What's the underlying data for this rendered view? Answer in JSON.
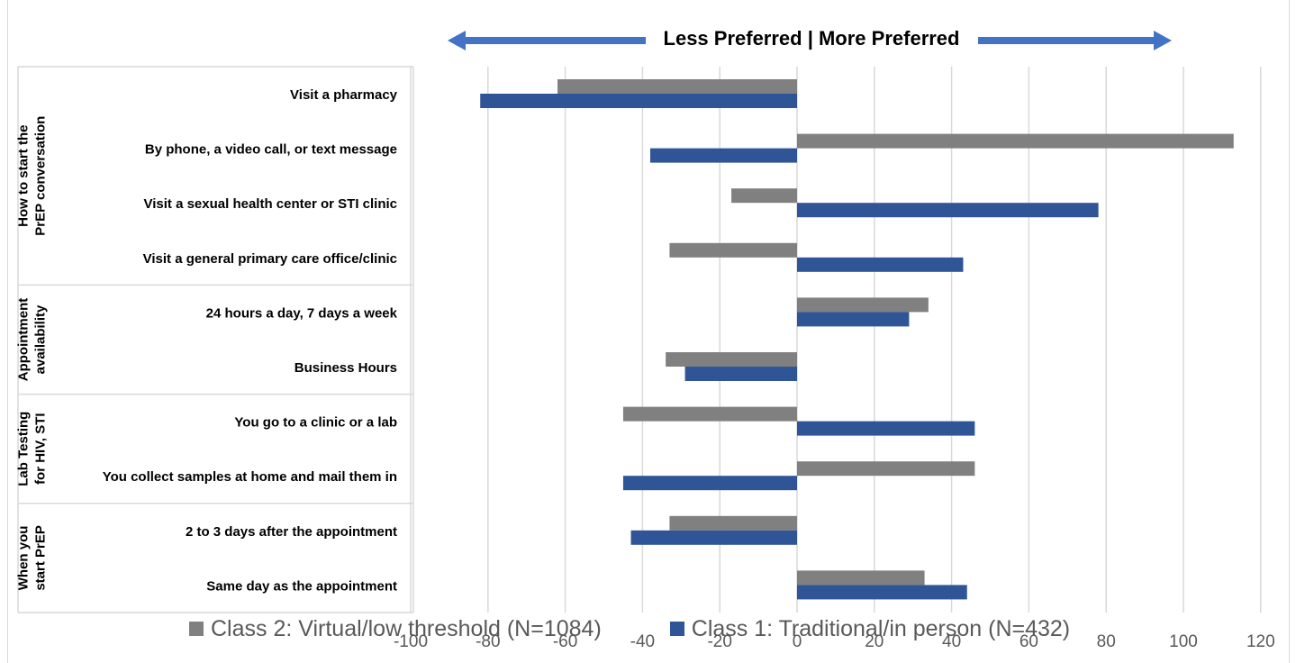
{
  "header": {
    "title": "",
    "banner": "Less Preferred | More Preferred"
  },
  "colors": {
    "class2": "#808080",
    "class1": "#2f5597",
    "arrow": "#4472c4",
    "grid": "#d9d9d9"
  },
  "chart_data": {
    "type": "bar",
    "orientation": "horizontal",
    "title": "",
    "xlabel": "",
    "ylabel": "",
    "xlim": [
      -100,
      120
    ],
    "x_ticks": [
      -100,
      -80,
      -60,
      -40,
      -20,
      0,
      20,
      40,
      60,
      80,
      100,
      120
    ],
    "grid": true,
    "legend_position": "bottom",
    "groups": [
      {
        "label": "How to start the PrEP conversation",
        "categories": [
          0,
          1,
          2,
          3
        ]
      },
      {
        "label": "Appointment availability",
        "categories": [
          4,
          5
        ]
      },
      {
        "label": "Lab Testing for HIV, STI",
        "categories": [
          6,
          7
        ]
      },
      {
        "label": "When you start PrEP",
        "categories": [
          8,
          9
        ]
      }
    ],
    "categories": [
      "Visit a pharmacy",
      "By phone, a video call, or text message",
      "Visit a sexual health center or STI clinic",
      "Visit a general primary care office/clinic",
      "24 hours a day, 7 days a week",
      "Business Hours",
      "You go to a clinic or a lab",
      "You collect samples at home and mail them in",
      "2 to 3 days after the appointment",
      "Same day as the appointment"
    ],
    "series": [
      {
        "name": "Class 2: Virtual/low threshold (N=1084)",
        "color": "#808080",
        "values": [
          -62,
          113,
          -17,
          -33,
          34,
          -34,
          -45,
          46,
          -33,
          33
        ]
      },
      {
        "name": "Class 1: Traditional/in person (N=432)",
        "color": "#2f5597",
        "values": [
          -82,
          -38,
          78,
          43,
          29,
          -29,
          46,
          -45,
          -43,
          44
        ]
      }
    ]
  }
}
